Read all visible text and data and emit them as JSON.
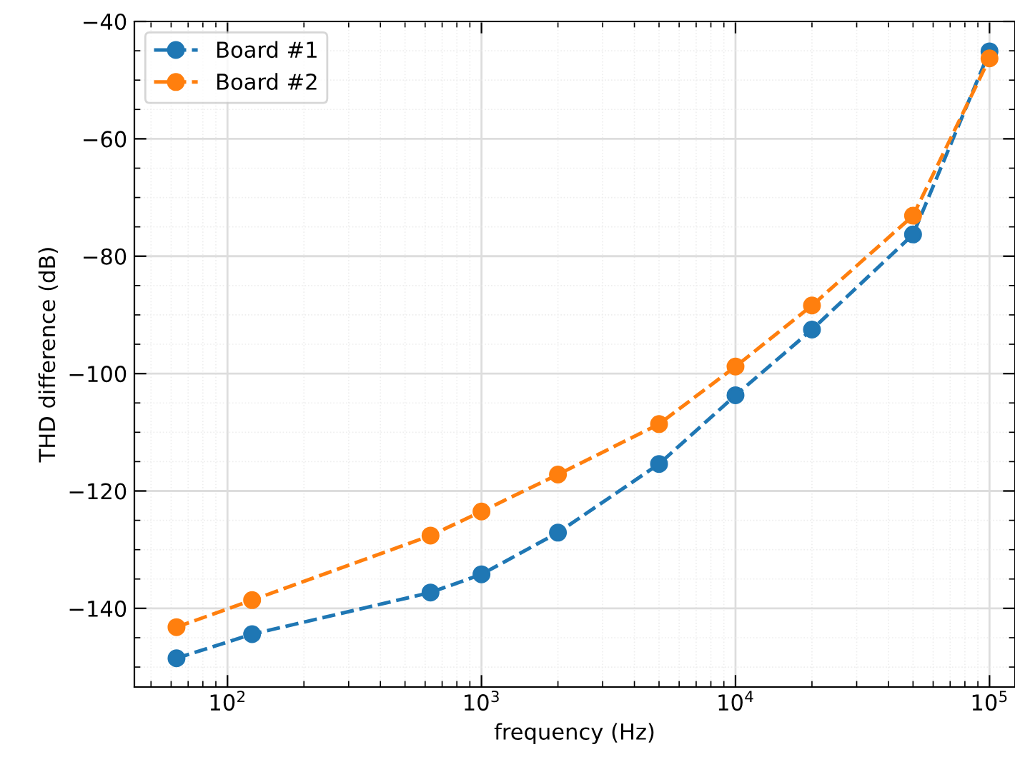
{
  "chart_data": {
    "type": "line",
    "xlabel": "frequency (Hz)",
    "ylabel": "THD difference (dB)",
    "log": "x",
    "x": [
      63,
      125,
      630,
      1000,
      2000,
      5000,
      10000,
      20000,
      50000,
      100000
    ],
    "series": [
      {
        "name": "Board #1",
        "color": "#1f77b4",
        "values": [
          -148.5,
          -144.4,
          -137.3,
          -134.2,
          -127.1,
          -115.4,
          -103.7,
          -92.5,
          -76.3,
          -45.1
        ]
      },
      {
        "name": "Board #2",
        "color": "#ff7f0e",
        "values": [
          -143.2,
          -138.6,
          -127.6,
          -123.5,
          -117.2,
          -108.6,
          -98.8,
          -88.4,
          -73.1,
          -46.3
        ]
      }
    ],
    "xlim": [
      43,
      126000
    ],
    "ylim": [
      -153.4,
      -40
    ],
    "xticks": [
      {
        "value": 100,
        "label": "10$^{2}$"
      },
      {
        "value": 1000,
        "label": "10$^{3}$"
      },
      {
        "value": 10000,
        "label": "10$^{4}$"
      },
      {
        "value": 100000,
        "label": "10$^{5}$"
      }
    ],
    "yticks": [
      -140,
      -120,
      -100,
      -80,
      -60,
      -40
    ],
    "grid": true,
    "legend": "top left",
    "marker": "circle",
    "line_style": "dashed"
  }
}
